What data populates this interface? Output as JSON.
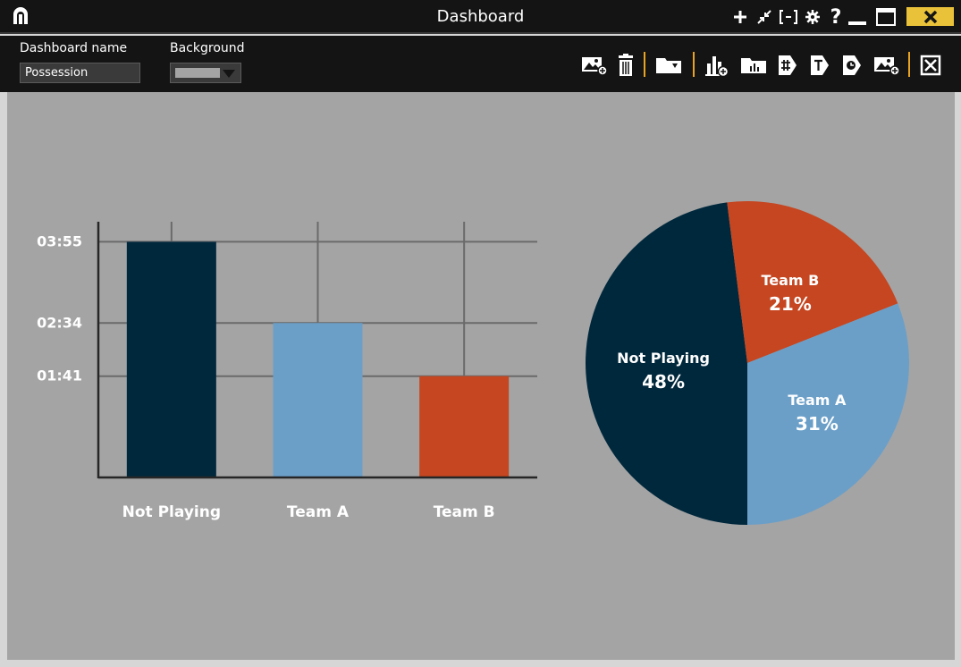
{
  "window": {
    "title": "Dashboard"
  },
  "toolbar": {
    "name_label": "Dashboard name",
    "name_value": "Possession",
    "background_label": "Background",
    "background_value_color": "#a4a4a4"
  },
  "colors": {
    "not_playing": "#00283c",
    "team_a": "#6b9fc8",
    "team_b": "#c54620",
    "canvas": "#a4a4a4",
    "accent": "#e9c23a"
  },
  "icons": {
    "title_controls": [
      "plus-icon",
      "collapse-icon",
      "bracket-icon",
      "gear-icon",
      "help-icon",
      "minimize-icon",
      "maximize-icon",
      "close-icon"
    ],
    "toolbar": [
      "add-image-icon",
      "trash-icon",
      "folder-icon",
      "add-chart-icon",
      "bar-chart-icon",
      "counter-icon",
      "text-icon",
      "timer-icon",
      "add-media-icon",
      "close-dashboard-icon"
    ]
  },
  "chart_data": [
    {
      "type": "bar",
      "categories": [
        "Not Playing",
        "Team A",
        "Team B"
      ],
      "values": [
        235,
        154,
        101
      ],
      "ytick_values": [
        235,
        154,
        101
      ],
      "ytick_labels": [
        "03:55",
        "02:34",
        "01:41"
      ],
      "ylim": [
        0,
        255
      ],
      "grid": true
    },
    {
      "type": "pie",
      "labels": [
        "Not Playing",
        "Team B",
        "Team A"
      ],
      "values": [
        48,
        21,
        31
      ],
      "value_labels": [
        "48%",
        "21%",
        "31%"
      ]
    }
  ]
}
